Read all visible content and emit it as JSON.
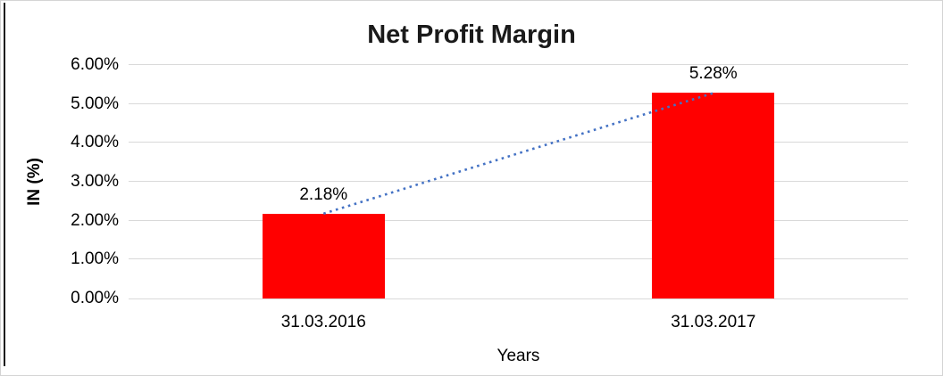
{
  "chart_data": {
    "type": "bar",
    "title": "Net Profit Margin",
    "categories": [
      "31.03.2016",
      "31.03.2017"
    ],
    "values": [
      2.18,
      5.28
    ],
    "data_labels": [
      "2.18%",
      "5.28%"
    ],
    "xlabel": "Years",
    "ylabel": "IN (%)",
    "ylim": [
      0,
      6
    ],
    "ytick_labels": [
      "0.00%",
      "1.00%",
      "2.00%",
      "3.00%",
      "4.00%",
      "5.00%",
      "6.00%"
    ],
    "grid": true,
    "legend": "none",
    "bar_color": "#ff0000",
    "trendline": {
      "style": "dotted",
      "color": "#4472c4",
      "from_label": "2.18%",
      "to_label": "5.28%"
    }
  }
}
